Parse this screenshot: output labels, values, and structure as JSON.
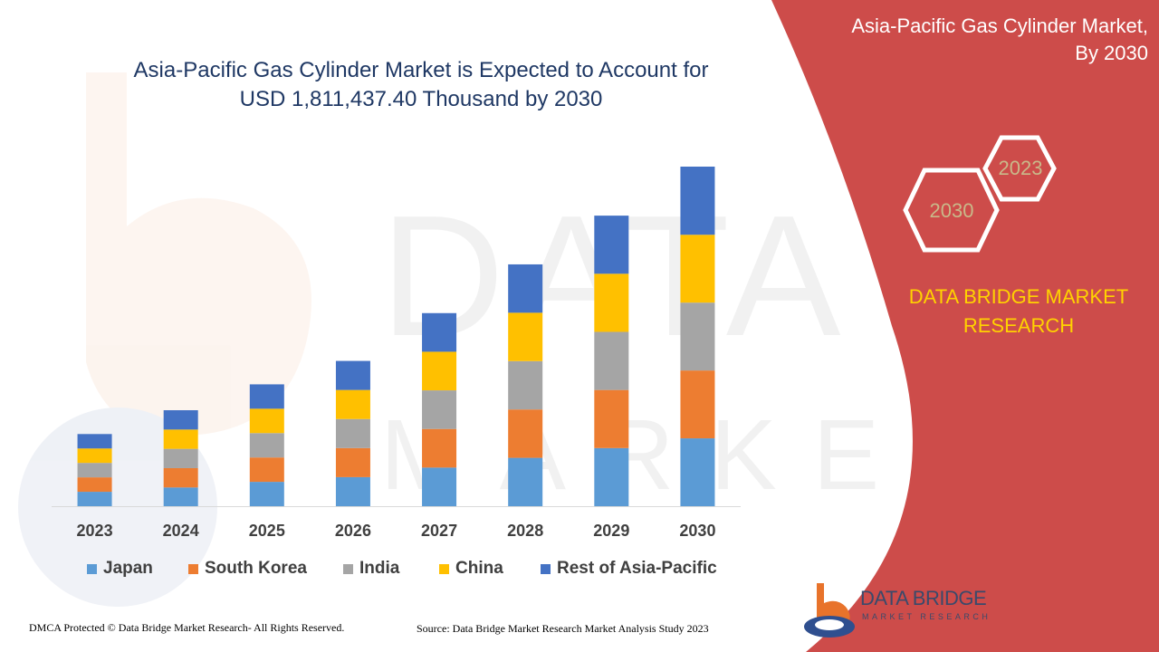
{
  "panel": {
    "title_line1": "Asia-Pacific Gas Cylinder Market,",
    "title_line2": "By 2030",
    "hex_front": "2030",
    "hex_back": "2023",
    "brand_line1": "DATA BRIDGE MARKET",
    "brand_line2": "RESEARCH"
  },
  "footer": {
    "left": "DMCA Protected © Data Bridge Market Research- All Rights Reserved.",
    "right": "Source: Data Bridge Market Research Market Analysis Study 2023"
  },
  "logo": {
    "name": "DATA BRIDGE",
    "sub": "MARKET RESEARCH"
  },
  "colors": {
    "panel": "#cd4c4a",
    "brand_text": "#ffd200"
  },
  "chart_data": {
    "type": "bar",
    "stacked": true,
    "title_line1": "Asia-Pacific Gas Cylinder Market is Expected to Account for",
    "title_line2": "USD 1,811,437.40 Thousand by 2030",
    "categories": [
      "2023",
      "2024",
      "2025",
      "2026",
      "2027",
      "2028",
      "2029",
      "2030"
    ],
    "ylim": [
      0,
      1811437.4
    ],
    "grid": false,
    "legend_position": "bottom",
    "series": [
      {
        "name": "Japan",
        "color": "#5b9bd5",
        "values": [
          77000,
          100000,
          130000,
          155000,
          206000,
          258000,
          310000,
          362000
        ]
      },
      {
        "name": "South Korea",
        "color": "#ed7d31",
        "values": [
          77000,
          103000,
          130000,
          155000,
          206000,
          258000,
          310000,
          362000
        ]
      },
      {
        "name": "India",
        "color": "#a5a5a5",
        "values": [
          77000,
          103000,
          130000,
          155000,
          206000,
          258000,
          310000,
          362000
        ]
      },
      {
        "name": "China",
        "color": "#ffc000",
        "values": [
          77000,
          103000,
          130000,
          155000,
          206000,
          258000,
          310000,
          362000
        ]
      },
      {
        "name": "Rest of Asia-Pacific",
        "color": "#4472c4",
        "values": [
          77000,
          103000,
          130000,
          155000,
          206000,
          258000,
          310000,
          363437.4
        ]
      }
    ]
  }
}
